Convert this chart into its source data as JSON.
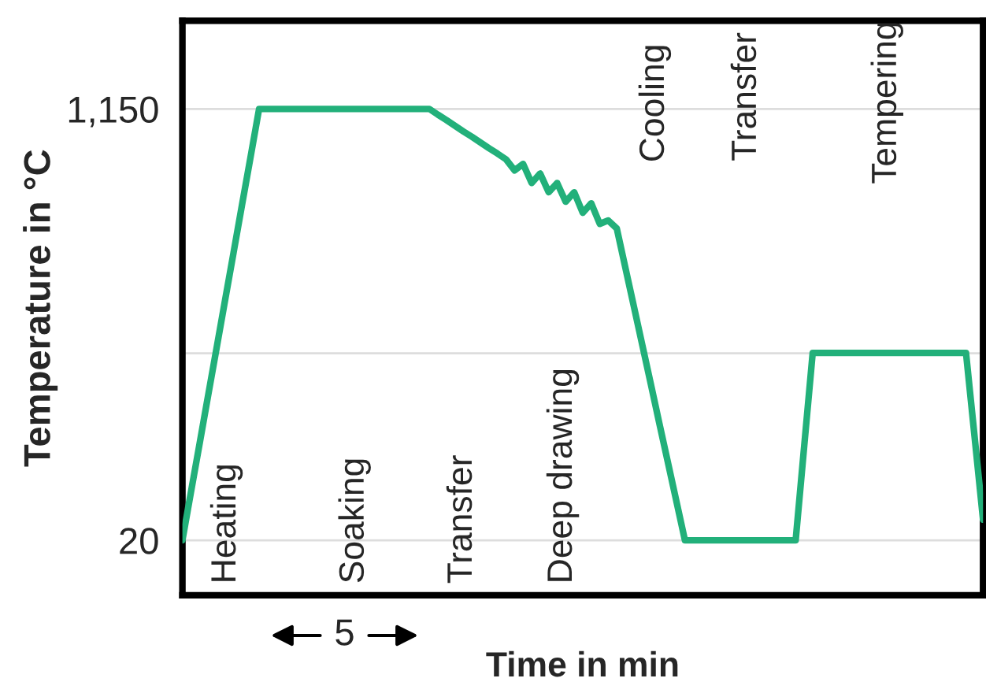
{
  "chart_data": {
    "type": "line",
    "xlabel": "Time in min",
    "ylabel": "Temperature in °C",
    "categories": [
      null,
      null,
      null,
      null,
      null,
      null,
      null,
      null,
      null,
      null,
      null,
      null,
      null,
      null,
      null,
      null,
      null,
      null,
      null,
      null,
      null,
      null,
      null,
      null,
      null,
      null,
      null,
      null,
      null,
      null,
      null,
      null,
      null,
      null,
      null,
      null,
      null,
      null,
      null,
      null,
      null,
      null,
      null,
      null,
      null,
      null,
      null,
      null,
      null,
      null,
      null,
      null,
      null,
      null,
      null,
      null,
      null,
      null,
      null,
      null,
      null,
      null,
      null,
      null,
      null,
      null,
      null,
      null,
      null,
      null,
      null,
      null,
      null,
      null,
      null,
      null,
      null,
      null,
      null,
      null,
      null,
      null,
      null,
      null,
      null,
      null,
      null,
      null,
      null,
      null,
      null,
      null,
      null,
      null,
      null
    ],
    "ylim": [
      -124,
      1381
    ],
    "yticks": [
      {
        "value": 20,
        "label": "20"
      },
      {
        "value": 510,
        "label": null
      },
      {
        "value": 1150,
        "label": "1,150"
      }
    ],
    "grid": "y",
    "series": [
      {
        "color": "#22b07a",
        "values": [
          20,
          146,
          271,
          397,
          522,
          648,
          773,
          899,
          1024,
          1150,
          1150,
          1150,
          1150,
          1150,
          1150,
          1150,
          1150,
          1150,
          1150,
          1150,
          1150,
          1150,
          1150,
          1150,
          1150,
          1150,
          1150,
          1150,
          1150,
          1150,
          1135,
          1121,
          1106,
          1091,
          1077,
          1062,
          1047,
          1033,
          1018,
          989,
          1006,
          956,
          981,
          932,
          956,
          907,
          932,
          878,
          903,
          849,
          858,
          837,
          735,
          633,
          531,
          429,
          326,
          224,
          122,
          20,
          20,
          20,
          20,
          20,
          20,
          20,
          20,
          20,
          20,
          20,
          20,
          20,
          20,
          266,
          511,
          511,
          511,
          511,
          511,
          511,
          511,
          511,
          511,
          511,
          511,
          511,
          511,
          511,
          511,
          511,
          511,
          511,
          511,
          293,
          74
        ]
      }
    ],
    "annotations": [
      "Heating",
      "Soaking",
      "Transfer",
      "Deep drawing",
      "Cooling",
      "Transfer",
      "Tempering",
      "5"
    ]
  }
}
